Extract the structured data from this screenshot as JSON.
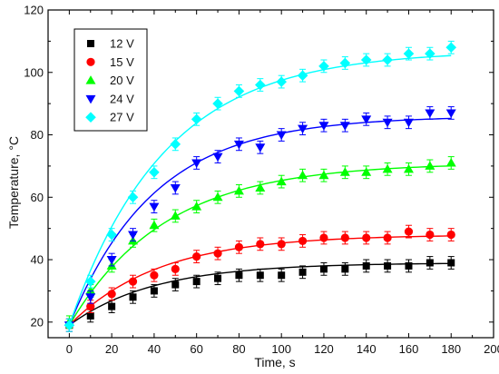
{
  "chart_data": {
    "type": "scatter",
    "xlabel": "Time, s",
    "ylabel": "Temperature, ",
    "ylabel_unit": "°C",
    "xlim": [
      -10,
      200
    ],
    "ylim": [
      15,
      120
    ],
    "x_ticks": [
      0,
      20,
      40,
      60,
      80,
      100,
      120,
      140,
      160,
      180,
      200
    ],
    "y_ticks": [
      20,
      40,
      60,
      80,
      100,
      120
    ],
    "grid": false,
    "legend_position": "top-left",
    "x": [
      0,
      10,
      20,
      30,
      40,
      50,
      60,
      70,
      80,
      90,
      100,
      110,
      120,
      130,
      140,
      150,
      160,
      170,
      180
    ],
    "error_bar": 2,
    "series": [
      {
        "name": "12 V",
        "color": "#000000",
        "marker": "square",
        "values": [
          19,
          22,
          25,
          28,
          30,
          32,
          33,
          34,
          35,
          35,
          35,
          36,
          37,
          37,
          38,
          38,
          38,
          39,
          39
        ],
        "fit": {
          "base": 19,
          "amp": 20,
          "tau": 40
        }
      },
      {
        "name": "15 V",
        "color": "#ff0000",
        "marker": "circle",
        "values": [
          19,
          25,
          29,
          33,
          35,
          37,
          41,
          42,
          44,
          45,
          45,
          46,
          47,
          47,
          47,
          47,
          49,
          48,
          48
        ],
        "fit": {
          "base": 19,
          "amp": 29,
          "tau": 42
        }
      },
      {
        "name": "20 V",
        "color": "#00ff00",
        "marker": "triangle-up",
        "values": [
          20,
          30,
          38,
          46,
          51,
          54,
          57,
          60,
          62,
          63,
          65,
          67,
          67,
          68,
          68,
          69,
          69,
          70,
          71
        ],
        "fit": {
          "base": 19,
          "amp": 52,
          "tau": 45
        }
      },
      {
        "name": "24 V",
        "color": "#0000ff",
        "marker": "triangle-down",
        "values": [
          19,
          28,
          40,
          48,
          57,
          63,
          71,
          73,
          77,
          76,
          80,
          82,
          83,
          83,
          85,
          84,
          84,
          87,
          87
        ],
        "fit": {
          "base": 19,
          "amp": 67,
          "tau": 40
        }
      },
      {
        "name": "27 V",
        "color": "#00ffff",
        "marker": "diamond",
        "values": [
          19,
          33,
          48,
          60,
          68,
          77,
          85,
          90,
          94,
          96,
          97,
          99,
          102,
          103,
          104,
          104,
          106,
          106,
          108
        ],
        "fit": {
          "base": 19,
          "amp": 88,
          "tau": 45
        }
      }
    ]
  }
}
